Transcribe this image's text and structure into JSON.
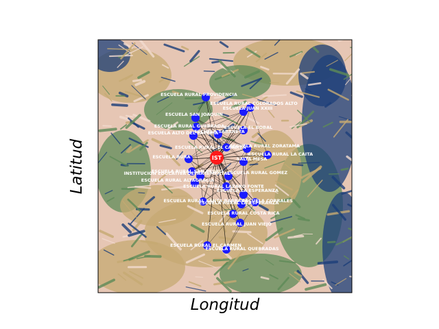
{
  "map": {
    "xlabel": "Longitud",
    "ylabel": "Latitud",
    "center_node_label": "IST",
    "colors": {
      "school_node": "#1a1aff",
      "center_node": "#ff1a1a",
      "edges": "#000000",
      "labels": "#ffffff",
      "terrain_light": "#e6c6b4",
      "terrain_tan": "#c6aa73",
      "terrain_green": "#5e8b58",
      "terrain_dark": "#1c3f7a"
    },
    "schools": [
      "ESCUELA RURAL PROVIDENCIA",
      "ESCUELA RURAL COLORADOS ALTO",
      "ESCUELA JUAN XXIII",
      "ESCUELA SAN JOAQUIN",
      "ESCUELA RURAL GUEBRADA",
      "ESCUELA EL BOBAL",
      "ESCUELA SABANETA",
      "ESCUELA ALTO DEL PACERIA",
      "ESCUELA RURAL EL CARMEN",
      "ESCUELA RURAL ZORATAMA",
      "ESCUELA RURA",
      "ESCUELA RURAL LA CAITA",
      "SALTA MESA",
      "ESCUELA RURAL SAN PEDRO",
      "INSTITUCION EDUCATIVA DEPARTAMENTAL",
      "ESCUELA RURAL GOMEZ",
      "ESCUELA RURAL ALTAGRACIA",
      "ESCUELA RURAL LAZARO FONTE",
      "ESCUELA LA ESPERANZA",
      "ESCUELA RURAL SANTA BARBARA",
      "ESCUELA CORRALES",
      "ESCUELA RURAL LA ESPERANZA",
      "ESCUELA RURAL COSTA RICA",
      "ESCUELA RURAL JUAN VIEJO",
      "ESCUELA RURAL EL CARMEN",
      "ESCUELA RURAL QUEBRADAS"
    ]
  }
}
